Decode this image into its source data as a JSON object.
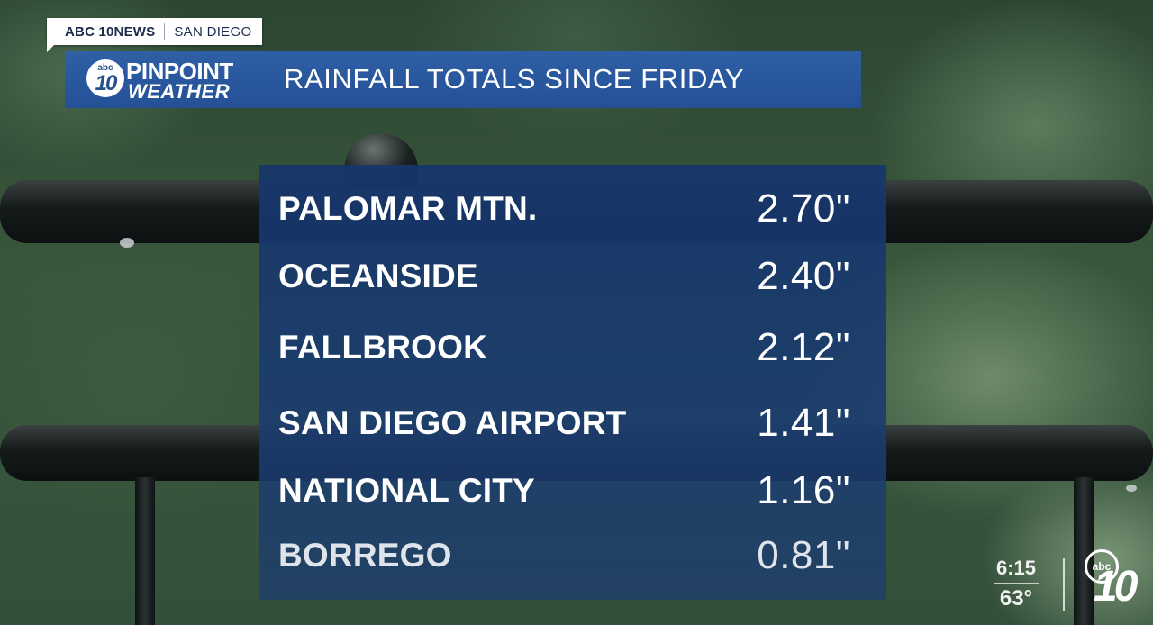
{
  "station": {
    "name": "ABC 10NEWS",
    "city": "SAN DIEGO"
  },
  "brand": {
    "badge_small": "abc",
    "badge_number": "10",
    "line1": "PINPOINT",
    "line2": "WEATHER"
  },
  "title": "RAINFALL TOTALS SINCE FRIDAY",
  "rainfall": [
    {
      "location": "PALOMAR MTN.",
      "amount": "2.70\""
    },
    {
      "location": "OCEANSIDE",
      "amount": "2.40\""
    },
    {
      "location": "FALLBROOK",
      "amount": "2.12\""
    },
    {
      "location": "SAN DIEGO AIRPORT",
      "amount": "1.41\""
    },
    {
      "location": "NATIONAL CITY",
      "amount": "1.16\""
    },
    {
      "location": "BORREGO",
      "amount": "0.81\""
    }
  ],
  "corner": {
    "time": "6:15",
    "temperature": "63°",
    "logo_small": "abc",
    "logo_number": "10"
  },
  "colors": {
    "title_bar": "#2a579d",
    "panel": "#16366c",
    "station_text": "#1d2b4d"
  }
}
